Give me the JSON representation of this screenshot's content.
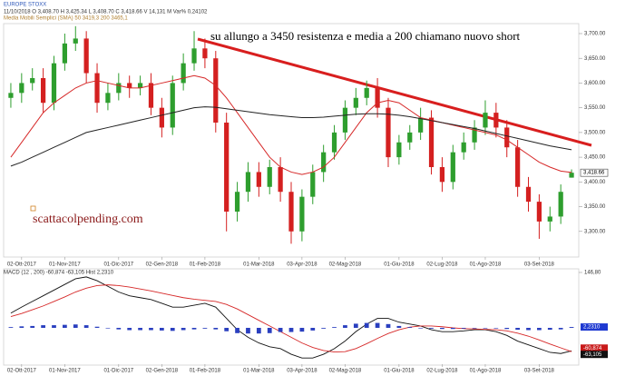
{
  "chart_data": [
    {
      "type": "candlestick",
      "title": "EUROPE STOXX",
      "subtitle": "11/10/2018   O 3,408.70   H 3,425.34   L 3,408.70   C 3,418.66   V 14,131 M   Var% 0,24102",
      "indicator_label": "Media Mobili Semplici (SMA)    50   3419,3    200   3465,1",
      "annotation": "su allungo a 3450 resistenza e media  a 200 chiamano nuovo short",
      "watermark": "scattacolpending.com",
      "categories": [
        null,
        null,
        null,
        null,
        null,
        null,
        null,
        null,
        null,
        null,
        null,
        null,
        null,
        null,
        null,
        null,
        null,
        null,
        null,
        null,
        null,
        null,
        null,
        null,
        null,
        null,
        null,
        null,
        null,
        null,
        null,
        null,
        null,
        null,
        null,
        null,
        null,
        null,
        null,
        null,
        null,
        null,
        null,
        null,
        null,
        null,
        null,
        null,
        null,
        null,
        null,
        null,
        null
      ],
      "xticks": [
        {
          "value": 1,
          "label": "02-Ott-2017"
        },
        {
          "value": 5,
          "label": "01-Nov-2017"
        },
        {
          "value": 10,
          "label": "01-Dic-2017"
        },
        {
          "value": 14,
          "label": "02-Gen-2018"
        },
        {
          "value": 18,
          "label": "01-Feb-2018"
        },
        {
          "value": 23,
          "label": "01-Mar-2018"
        },
        {
          "value": 27,
          "label": "03-Apr-2018"
        },
        {
          "value": 31,
          "label": "02-Mag-2018"
        },
        {
          "value": 36,
          "label": "01-Giu-2018"
        },
        {
          "value": 40,
          "label": "02-Lug-2018"
        },
        {
          "value": 44,
          "label": "01-Ago-2018"
        },
        {
          "value": 49,
          "label": "03-Set-2018"
        }
      ],
      "open": [
        3570,
        3580,
        3600,
        3610,
        3560,
        3640,
        3680,
        3690,
        3620,
        3560,
        3580,
        3600,
        3590,
        3600,
        3550,
        3510,
        3600,
        3640,
        3670,
        3650,
        3520,
        3340,
        3380,
        3420,
        3390,
        3430,
        3380,
        3300,
        3370,
        3420,
        3460,
        3500,
        3550,
        3570,
        3590,
        3550,
        3450,
        3480,
        3500,
        3530,
        3430,
        3400,
        3460,
        3480,
        3510,
        3540,
        3510,
        3470,
        3390,
        3360,
        3320,
        3330,
        3408.7
      ],
      "high": [
        3600,
        3620,
        3630,
        3630,
        3655,
        3700,
        3715,
        3705,
        3640,
        3600,
        3620,
        3615,
        3615,
        3620,
        3570,
        3615,
        3660,
        3705,
        3690,
        3665,
        3540,
        3400,
        3440,
        3440,
        3445,
        3450,
        3400,
        3385,
        3435,
        3475,
        3515,
        3565,
        3590,
        3605,
        3610,
        3570,
        3495,
        3515,
        3550,
        3545,
        3450,
        3475,
        3500,
        3525,
        3565,
        3560,
        3525,
        3485,
        3410,
        3375,
        3350,
        3395,
        3425.34
      ],
      "low": [
        3550,
        3560,
        3585,
        3540,
        3545,
        3625,
        3665,
        3600,
        3540,
        3545,
        3565,
        3570,
        3575,
        3535,
        3490,
        3495,
        3585,
        3625,
        3630,
        3500,
        3300,
        3320,
        3360,
        3370,
        3375,
        3360,
        3275,
        3280,
        3355,
        3400,
        3445,
        3485,
        3535,
        3555,
        3530,
        3430,
        3435,
        3465,
        3485,
        3415,
        3380,
        3385,
        3445,
        3465,
        3495,
        3490,
        3450,
        3370,
        3340,
        3285,
        3300,
        3315,
        3408.7
      ],
      "close": [
        3580,
        3600,
        3610,
        3560,
        3640,
        3680,
        3690,
        3620,
        3560,
        3580,
        3600,
        3590,
        3600,
        3550,
        3510,
        3600,
        3640,
        3670,
        3650,
        3520,
        3340,
        3380,
        3420,
        3390,
        3430,
        3380,
        3300,
        3370,
        3420,
        3460,
        3500,
        3550,
        3570,
        3590,
        3550,
        3450,
        3480,
        3500,
        3530,
        3430,
        3400,
        3460,
        3480,
        3510,
        3540,
        3510,
        3470,
        3390,
        3360,
        3320,
        3330,
        3380,
        3418.66
      ],
      "up_color": "#2e9e2e",
      "down_color": "#d42020",
      "series": [
        {
          "color": "#d62828",
          "values": [
            3450,
            3480,
            3510,
            3540,
            3560,
            3575,
            3590,
            3600,
            3605,
            3600,
            3595,
            3590,
            3590,
            3595,
            3600,
            3605,
            3610,
            3615,
            3610,
            3595,
            3570,
            3540,
            3510,
            3480,
            3450,
            3430,
            3420,
            3415,
            3420,
            3430,
            3450,
            3480,
            3510,
            3540,
            3560,
            3565,
            3560,
            3545,
            3530,
            3525,
            3520,
            3515,
            3510,
            3505,
            3500,
            3495,
            3485,
            3470,
            3455,
            3440,
            3430,
            3422,
            3419.3
          ]
        },
        {
          "color": "#222222",
          "values": [
            3432,
            3440,
            3450,
            3460,
            3470,
            3480,
            3490,
            3500,
            3505,
            3510,
            3515,
            3520,
            3525,
            3530,
            3535,
            3540,
            3545,
            3550,
            3552,
            3551,
            3548,
            3545,
            3542,
            3539,
            3536,
            3534,
            3532,
            3530,
            3530,
            3531,
            3533,
            3535,
            3537,
            3538,
            3538,
            3537,
            3535,
            3532,
            3528,
            3524,
            3520,
            3516,
            3512,
            3508,
            3503,
            3498,
            3493,
            3488,
            3483,
            3478,
            3473,
            3469,
            3465.1
          ]
        }
      ],
      "ylim": [
        3250,
        3716.5
      ],
      "yticks": [
        {
          "value": 3300,
          "label": "3,300.00"
        },
        {
          "value": 3350,
          "label": "3,350.00"
        },
        {
          "value": 3400,
          "label": "3,400.00"
        },
        {
          "value": 3450,
          "label": "3,450.00"
        },
        {
          "value": 3500,
          "label": "3,500.00"
        },
        {
          "value": 3550,
          "label": "3,550.00"
        },
        {
          "value": 3600,
          "label": "3,600.00"
        },
        {
          "value": 3650,
          "label": "3,650.00"
        },
        {
          "value": 3700,
          "label": "3,700.00"
        }
      ],
      "last_price": {
        "value": 3418.66,
        "label": "3,418.66"
      }
    },
    {
      "type": "macd",
      "title": "MACD   (12 , 200)    -60,874    -63,105    Hist    2,2310",
      "categories": [
        null,
        null,
        null,
        null,
        null,
        null,
        null,
        null,
        null,
        null,
        null,
        null,
        null,
        null,
        null,
        null,
        null,
        null,
        null,
        null,
        null,
        null,
        null,
        null,
        null,
        null,
        null,
        null,
        null,
        null,
        null,
        null,
        null,
        null,
        null,
        null,
        null,
        null,
        null,
        null,
        null,
        null,
        null,
        null,
        null,
        null,
        null,
        null,
        null,
        null,
        null,
        null,
        null
      ],
      "xticks": [
        {
          "value": 1,
          "label": "02-Ott-2017"
        },
        {
          "value": 5,
          "label": "01-Nov-2017"
        },
        {
          "value": 10,
          "label": "01-Dic-2017"
        },
        {
          "value": 14,
          "label": "02-Gen-2018"
        },
        {
          "value": 18,
          "label": "01-Feb-2018"
        },
        {
          "value": 23,
          "label": "01-Mar-2018"
        },
        {
          "value": 27,
          "label": "03-Apr-2018"
        },
        {
          "value": 31,
          "label": "02-Mag-2018"
        },
        {
          "value": 36,
          "label": "01-Giu-2018"
        },
        {
          "value": 40,
          "label": "02-Lug-2018"
        },
        {
          "value": 44,
          "label": "01-Ago-2018"
        },
        {
          "value": 49,
          "label": "03-Set-2018"
        }
      ],
      "series": [
        {
          "type": "line",
          "color": "#111111",
          "values": [
            39,
            55,
            70,
            85,
            100,
            115,
            130,
            135,
            125,
            110,
            95,
            85,
            80,
            75,
            65,
            55,
            55,
            60,
            65,
            55,
            25,
            -5,
            -25,
            -40,
            -50,
            -55,
            -70,
            -80,
            -80,
            -70,
            -55,
            -35,
            -10,
            10,
            25,
            25,
            15,
            10,
            5,
            -5,
            -10,
            -10,
            -8,
            -5,
            -5,
            -10,
            -20,
            -35,
            -45,
            -55,
            -65,
            -68,
            -60.874
          ]
        },
        {
          "type": "line",
          "color": "#d62828",
          "values": [
            30,
            38,
            48,
            58,
            70,
            82,
            95,
            105,
            112,
            114,
            112,
            108,
            103,
            98,
            92,
            86,
            80,
            76,
            73,
            70,
            62,
            50,
            35,
            20,
            5,
            -10,
            -25,
            -40,
            -52,
            -60,
            -64,
            -63,
            -55,
            -42,
            -28,
            -15,
            -5,
            2,
            5,
            5,
            3,
            0,
            -2,
            -3,
            -4,
            -5,
            -8,
            -14,
            -22,
            -32,
            -43,
            -53,
            -63.105
          ]
        },
        {
          "type": "bar",
          "color": "#2a3fbf",
          "values": [
            2,
            4,
            5,
            7,
            7,
            8,
            9,
            7,
            3,
            -1,
            -4,
            -6,
            -6,
            -6,
            -7,
            -8,
            -6,
            -4,
            -2,
            -4,
            -9,
            -14,
            -15,
            -15,
            -14,
            -11,
            -11,
            -10,
            -7,
            -2,
            2,
            7,
            11,
            13,
            13,
            10,
            5,
            2,
            0,
            -2,
            -3,
            -3,
            -2,
            -1,
            -0.5,
            -1,
            -3,
            -5,
            -6,
            -6,
            -5,
            -4,
            2.231
          ]
        }
      ],
      "ylim": [
        -93.9,
        151.6
      ],
      "yticks": [
        {
          "value": 146.8,
          "label": "146,80"
        }
      ],
      "markers": [
        {
          "value": 2.231,
          "label": "2,2310",
          "color": "#1f3ad1"
        },
        {
          "value": -60.874,
          "label": "-60,874",
          "color": "#c81a1a"
        },
        {
          "value": -63.105,
          "label": "-63,105",
          "color": "#111111"
        }
      ]
    }
  ]
}
